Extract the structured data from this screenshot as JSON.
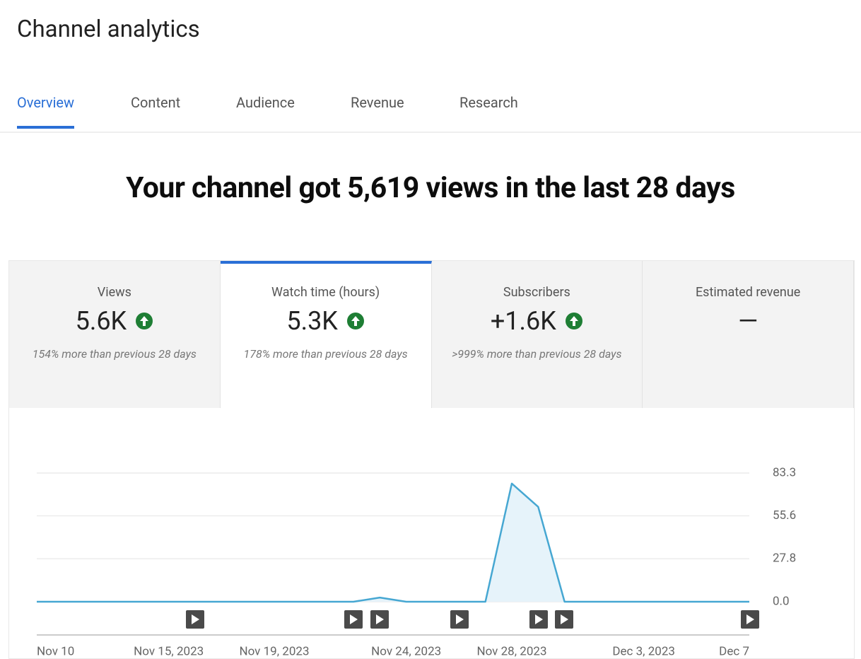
{
  "header": {
    "title": "Channel analytics"
  },
  "tabs": [
    "Overview",
    "Content",
    "Audience",
    "Revenue",
    "Research"
  ],
  "active_tab": 0,
  "headline": "Your channel got 5,619 views in the last 28 days",
  "cards": [
    {
      "label": "Views",
      "value": "5.6K",
      "note": "154% more than previous 28 days",
      "up": true
    },
    {
      "label": "Watch time (hours)",
      "value": "5.3K",
      "note": "178% more than previous 28 days",
      "up": true
    },
    {
      "label": "Subscribers",
      "value": "+1.6K",
      "note": ">999% more than previous 28 days",
      "up": true
    },
    {
      "label": "Estimated revenue",
      "value": "—",
      "up": false
    }
  ],
  "active_card": 1,
  "chart_data": {
    "type": "area",
    "categories": [
      "Nov 10",
      null,
      null,
      null,
      null,
      "Nov 15, 2023",
      null,
      null,
      null,
      "Nov 19, 2023",
      null,
      null,
      null,
      null,
      "Nov 24, 2023",
      null,
      null,
      null,
      "Nov 28, 2023",
      null,
      null,
      null,
      null,
      "Dec 3, 2023",
      null,
      null,
      null,
      "Dec 7"
    ],
    "values": [
      0,
      0,
      0,
      0,
      0,
      0,
      0,
      0,
      0,
      0,
      0,
      0,
      0,
      2.7,
      0,
      0,
      0,
      0,
      76.5,
      61.4,
      0,
      0,
      0,
      0,
      0,
      0,
      0,
      0
    ],
    "ylim": [
      0,
      83.3
    ],
    "yticks": [
      {
        "value": 0,
        "label": "0.0"
      },
      27.8,
      55.6,
      83.3
    ],
    "grid": true,
    "color": "#46a7d2",
    "fill": "#e6f3fa"
  }
}
